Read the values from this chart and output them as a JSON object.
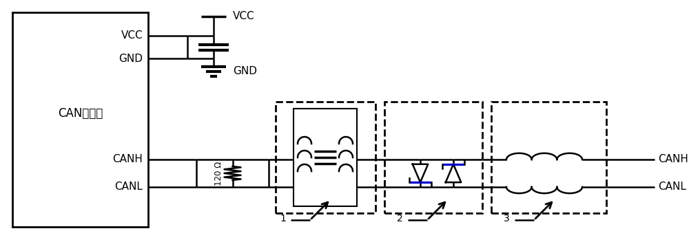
{
  "bg_color": "#ffffff",
  "line_color": "#000000",
  "blue_color": "#0000cd",
  "fig_width": 10.0,
  "fig_height": 3.52,
  "dpi": 100,
  "labels": {
    "vcc_box": "VCC",
    "gnd_box": "GND",
    "can_label": "CAN收发器",
    "canh_box": "CANH",
    "canl_box": "CANL",
    "vcc_cap": "VCC",
    "gnd_cap": "GND",
    "canh_out": "CANH",
    "canl_out": "CANL",
    "resistor_label": "120 Ω",
    "label1": "1",
    "label2": "2",
    "label3": "3"
  }
}
